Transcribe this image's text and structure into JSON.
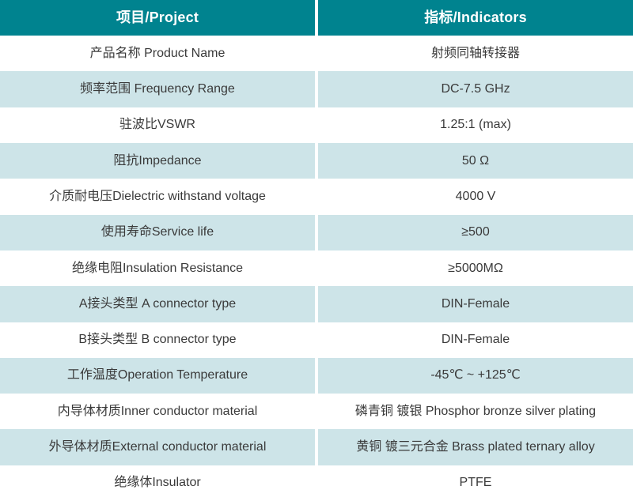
{
  "colors": {
    "header_bg": "#00838f",
    "header_text": "#ffffff",
    "row_bg": "#ffffff",
    "row_alt_bg": "#cde4e8",
    "body_text": "#3a3a3a"
  },
  "header": {
    "project_label": "项目/Project",
    "indicators_label": "指标/Indicators"
  },
  "rows": [
    {
      "project": "产品名称 Product Name",
      "indicator": "射频同轴转接器"
    },
    {
      "project": "频率范围 Frequency Range",
      "indicator": "DC-7.5 GHz"
    },
    {
      "project": "驻波比VSWR",
      "indicator": "1.25:1 (max)"
    },
    {
      "project": "阻抗Impedance",
      "indicator": "50 Ω"
    },
    {
      "project": "介质耐电压Dielectric withstand voltage",
      "indicator": "4000 V"
    },
    {
      "project": "使用寿命Service life",
      "indicator": "≥500"
    },
    {
      "project": "绝缘电阻Insulation Resistance",
      "indicator": "≥5000MΩ"
    },
    {
      "project": "A接头类型 A connector type",
      "indicator": "DIN-Female"
    },
    {
      "project": "B接头类型 B connector type",
      "indicator": "DIN-Female"
    },
    {
      "project": "工作温度Operation Temperature",
      "indicator": "-45℃ ~ +125℃"
    },
    {
      "project": "内导体材质Inner conductor material",
      "indicator": "磷青铜 镀银 Phosphor bronze silver plating"
    },
    {
      "project": "外导体材质External conductor material",
      "indicator": "黄铜 镀三元合金 Brass plated ternary alloy"
    },
    {
      "project": "绝缘体Insulator",
      "indicator": "PTFE"
    }
  ]
}
